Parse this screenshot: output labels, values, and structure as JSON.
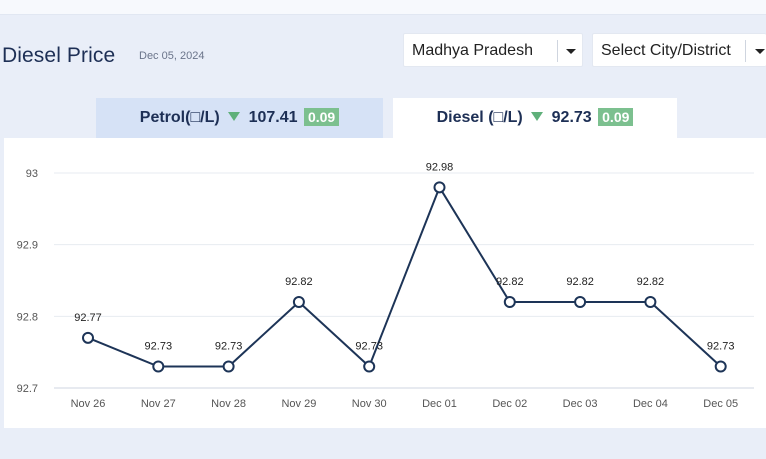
{
  "header": {
    "title": "Diesel Price",
    "date": "Dec 05, 2024",
    "state_select": "Madhya Pradesh",
    "city_select": "Select City/District"
  },
  "tabs": {
    "petrol": {
      "label": "Petrol(□/L)",
      "price": "107.41",
      "change": "0.09"
    },
    "diesel": {
      "label": "Diesel (□/L)",
      "price": "92.73",
      "change": "0.09"
    }
  },
  "colors": {
    "line": "#1d3457",
    "change_badge": "#7cc08f",
    "down_arrow": "#5fb07a",
    "active_tab": "#ffffff",
    "inactive_tab": "#d6e2f6"
  },
  "chart_data": {
    "type": "line",
    "categories": [
      "Nov 26",
      "Nov 27",
      "Nov 28",
      "Nov 29",
      "Nov 30",
      "Dec 01",
      "Dec 02",
      "Dec 03",
      "Dec 04",
      "Dec 05"
    ],
    "values": [
      92.77,
      92.73,
      92.73,
      92.82,
      92.73,
      92.98,
      92.82,
      92.82,
      92.82,
      92.73
    ],
    "data_labels": [
      "92.77",
      "92.73",
      "92.73",
      "92.82",
      "92.73",
      "92.98",
      "92.82",
      "92.82",
      "92.82",
      "92.73"
    ],
    "y_ticks": [
      "93",
      "92.9",
      "92.8",
      "92.7"
    ],
    "ylim": [
      92.7,
      93.0
    ],
    "grid": true,
    "title": "",
    "xlabel": "",
    "ylabel": ""
  }
}
